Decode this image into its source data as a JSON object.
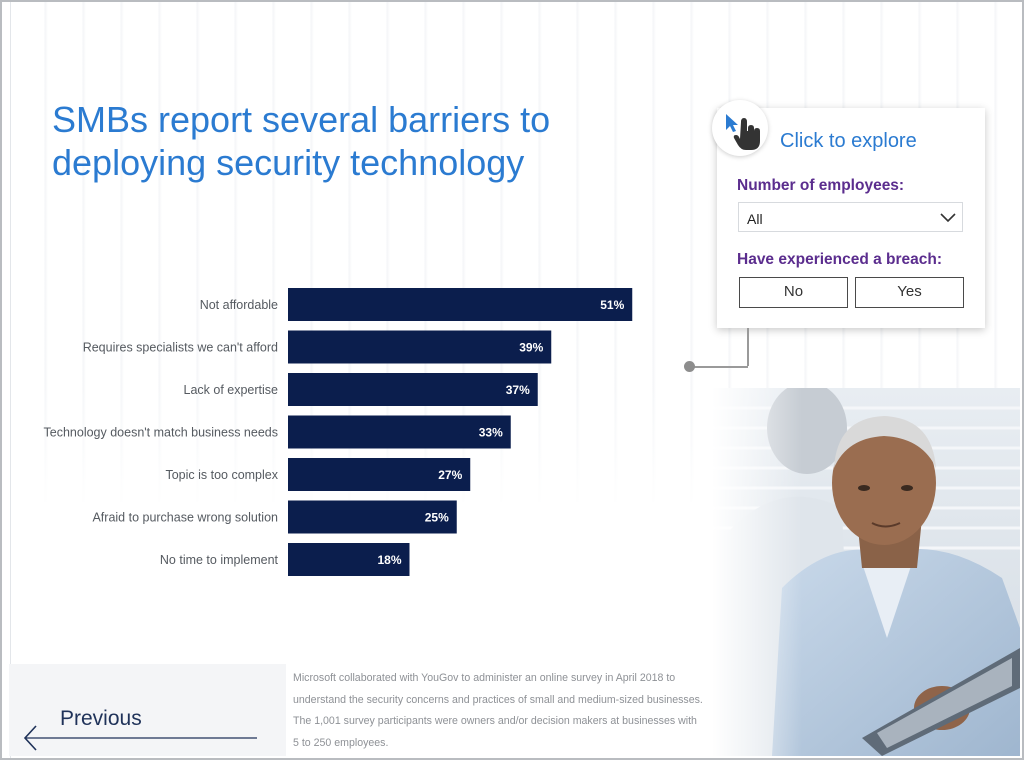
{
  "title": {
    "line1": "SMBs report several barriers to",
    "line2": "deploying security technology"
  },
  "explore": {
    "heading": "Click to explore",
    "employees_label": "Number of employees:",
    "employees_value": "All",
    "breach_label": "Have experienced a breach:",
    "breach_options": [
      "No",
      "Yes"
    ]
  },
  "nav": {
    "previous_label": "Previous"
  },
  "footnote": {
    "lines": [
      "Microsoft collaborated with YouGov to administer an online survey in April 2018 to",
      "understand the security concerns and practices of small and medium-sized businesses.",
      "The 1,001 survey participants were owners and/or decision makers at businesses with",
      "5 to 250 employees."
    ]
  },
  "colors": {
    "title_blue": "#2b7bd1",
    "bar_navy": "#0b1e4d",
    "label_purple": "#5b2d8e"
  },
  "chart_data": {
    "type": "bar",
    "orientation": "horizontal",
    "categories": [
      "Not affordable",
      "Requires specialists we can't afford",
      "Lack of expertise",
      "Technology doesn't match business needs",
      "Topic is too complex",
      "Afraid to purchase wrong solution",
      "No time to implement"
    ],
    "values": [
      51,
      39,
      37,
      33,
      27,
      25,
      18
    ],
    "value_labels": [
      "51%",
      "39%",
      "37%",
      "33%",
      "27%",
      "25%",
      "18%"
    ],
    "unit": "%",
    "xlim": [
      0,
      100
    ],
    "grid": false,
    "legend": false
  }
}
